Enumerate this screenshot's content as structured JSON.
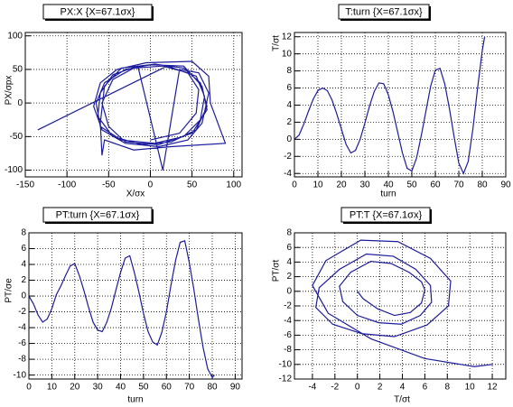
{
  "chart_data": [
    {
      "type": "line",
      "title": "PX:X {X=67.1σx}",
      "xlabel": "X/σx",
      "ylabel": "PX/σpx",
      "color": "#1c1c9c",
      "grid": true,
      "x": [
        -135,
        20,
        55,
        65,
        60,
        40,
        5,
        -35,
        -60,
        -65,
        -55,
        -30,
        5,
        40,
        60,
        68,
        55,
        25,
        -10,
        -45,
        -63,
        -60,
        -45,
        -15,
        15,
        35,
        58,
        70,
        62,
        45,
        10,
        -30,
        -58,
        -68,
        -60,
        -40,
        -5,
        50,
        70,
        72,
        90,
        25,
        -20,
        -55,
        -58,
        -60,
        -55,
        -35,
        0,
        40,
        62,
        68,
        50,
        10,
        -30,
        -50,
        -58,
        -45,
        -20,
        15,
        45,
        58,
        55,
        35,
        0
      ],
      "values": [
        -40,
        55,
        40,
        10,
        -25,
        -50,
        -60,
        -55,
        -35,
        0,
        30,
        50,
        58,
        52,
        30,
        -5,
        -40,
        -58,
        -62,
        -50,
        -20,
        15,
        42,
        55,
        -100,
        50,
        45,
        15,
        -30,
        -55,
        -65,
        -60,
        -40,
        -5,
        30,
        50,
        60,
        62,
        40,
        0,
        -60,
        -65,
        -70,
        -55,
        -78,
        -30,
        25,
        52,
        57,
        55,
        25,
        -10,
        -45,
        -62,
        -58,
        -35,
        0,
        35,
        52,
        55,
        45,
        20,
        -15,
        -45,
        -55
      ],
      "xlim": [
        -150,
        110
      ],
      "xticks": [
        -150,
        -100,
        -50,
        0,
        50,
        100
      ],
      "ylim": [
        -110,
        105
      ],
      "yticks": [
        -100,
        -50,
        0,
        50,
        100
      ]
    },
    {
      "type": "line",
      "title": "T:turn {X=67.1σx}",
      "xlabel": "turn",
      "ylabel": "T/σt",
      "color": "#1c1c9c",
      "grid": true,
      "x": [
        0,
        2,
        4,
        6,
        8,
        10,
        12,
        14,
        16,
        18,
        20,
        22,
        24,
        26,
        28,
        30,
        32,
        34,
        36,
        38,
        40,
        42,
        44,
        46,
        48,
        50,
        52,
        54,
        56,
        58,
        60,
        62,
        64,
        66,
        68,
        70,
        72,
        74,
        76,
        78,
        80,
        81
      ],
      "values": [
        0,
        0.5,
        1.8,
        3.3,
        4.7,
        5.7,
        6.0,
        5.7,
        4.6,
        3.0,
        1.2,
        -0.6,
        -1.6,
        -1.3,
        0.0,
        1.9,
        3.9,
        5.6,
        6.6,
        6.5,
        5.2,
        3.2,
        0.8,
        -1.6,
        -3.4,
        -3.7,
        -2.2,
        0.4,
        3.3,
        6.2,
        8.1,
        8.3,
        6.5,
        3.6,
        0.3,
        -2.8,
        -4.0,
        -2.6,
        1.2,
        6.0,
        10.4,
        12.0
      ],
      "xlim": [
        0,
        90
      ],
      "xticks": [
        0,
        10,
        20,
        30,
        40,
        50,
        60,
        70,
        80,
        90
      ],
      "ylim": [
        -4.4,
        12.5
      ],
      "yticks": [
        -4,
        -2,
        0,
        2,
        4,
        6,
        8,
        10,
        12
      ]
    },
    {
      "type": "line",
      "title": "PT:turn {X=67.1σx}",
      "xlabel": "turn",
      "ylabel": "PT/σe",
      "color": "#1c1c9c",
      "grid": true,
      "x": [
        0,
        2,
        4,
        6,
        8,
        10,
        12,
        14,
        16,
        18,
        20,
        22,
        24,
        26,
        28,
        30,
        32,
        34,
        36,
        38,
        40,
        42,
        44,
        46,
        48,
        50,
        52,
        54,
        56,
        58,
        60,
        62,
        64,
        66,
        68,
        70,
        72,
        74,
        76,
        78,
        80,
        81
      ],
      "values": [
        0,
        -1.0,
        -2.4,
        -3.3,
        -2.9,
        -1.6,
        0.2,
        1.3,
        2.6,
        3.8,
        4.1,
        2.6,
        0.7,
        -1.4,
        -3.3,
        -4.3,
        -4.5,
        -3.3,
        -1.5,
        0.8,
        3.0,
        4.8,
        5.1,
        3.0,
        0.5,
        -2.2,
        -4.5,
        -5.8,
        -6.2,
        -4.6,
        -2.0,
        1.4,
        4.5,
        6.8,
        7.0,
        4.2,
        0.8,
        -3.0,
        -6.5,
        -9.2,
        -10.3,
        -10.0
      ],
      "xlim": [
        0,
        93
      ],
      "xticks": [
        0,
        10,
        20,
        30,
        40,
        50,
        60,
        70,
        80,
        90
      ],
      "ylim": [
        -10.5,
        8
      ],
      "yticks": [
        -10,
        -8,
        -6,
        -4,
        -2,
        0,
        2,
        4,
        6,
        8
      ]
    },
    {
      "type": "line",
      "title": "PT:T {X=67.1σx}",
      "xlabel": "T/σt",
      "ylabel": "PT/σt",
      "color": "#1c1c9c",
      "grid": true,
      "x": [
        0,
        0.5,
        1.8,
        3.3,
        4.7,
        5.7,
        6.0,
        5.7,
        4.6,
        3.0,
        1.2,
        -0.6,
        -1.6,
        -1.3,
        0.0,
        1.9,
        3.9,
        5.6,
        6.6,
        6.5,
        5.2,
        3.2,
        0.8,
        -1.6,
        -3.4,
        -3.7,
        -2.2,
        0.4,
        3.3,
        6.2,
        8.1,
        8.3,
        6.5,
        3.6,
        0.3,
        -2.8,
        -4.0,
        -2.6,
        1.2,
        6.0,
        10.4,
        12.0
      ],
      "values": [
        0,
        -1.0,
        -2.4,
        -3.3,
        -2.9,
        -1.6,
        0.2,
        1.3,
        2.6,
        3.8,
        4.1,
        2.6,
        0.7,
        -1.4,
        -3.3,
        -4.3,
        -4.5,
        -3.3,
        -1.5,
        0.8,
        3.0,
        4.8,
        5.1,
        3.0,
        0.5,
        -2.2,
        -4.5,
        -5.8,
        -6.2,
        -4.6,
        -2.0,
        1.4,
        4.5,
        6.8,
        7.0,
        4.2,
        0.8,
        -3.0,
        -6.5,
        -9.2,
        -10.3,
        -10.0
      ],
      "xlim": [
        -5.6,
        13.2
      ],
      "xticks": [
        -4,
        -2,
        0,
        2,
        4,
        6,
        8,
        10,
        12
      ],
      "ylim": [
        -12,
        8
      ],
      "yticks": [
        -12,
        -10,
        -8,
        -6,
        -4,
        -2,
        0,
        2,
        4,
        6,
        8
      ]
    }
  ]
}
